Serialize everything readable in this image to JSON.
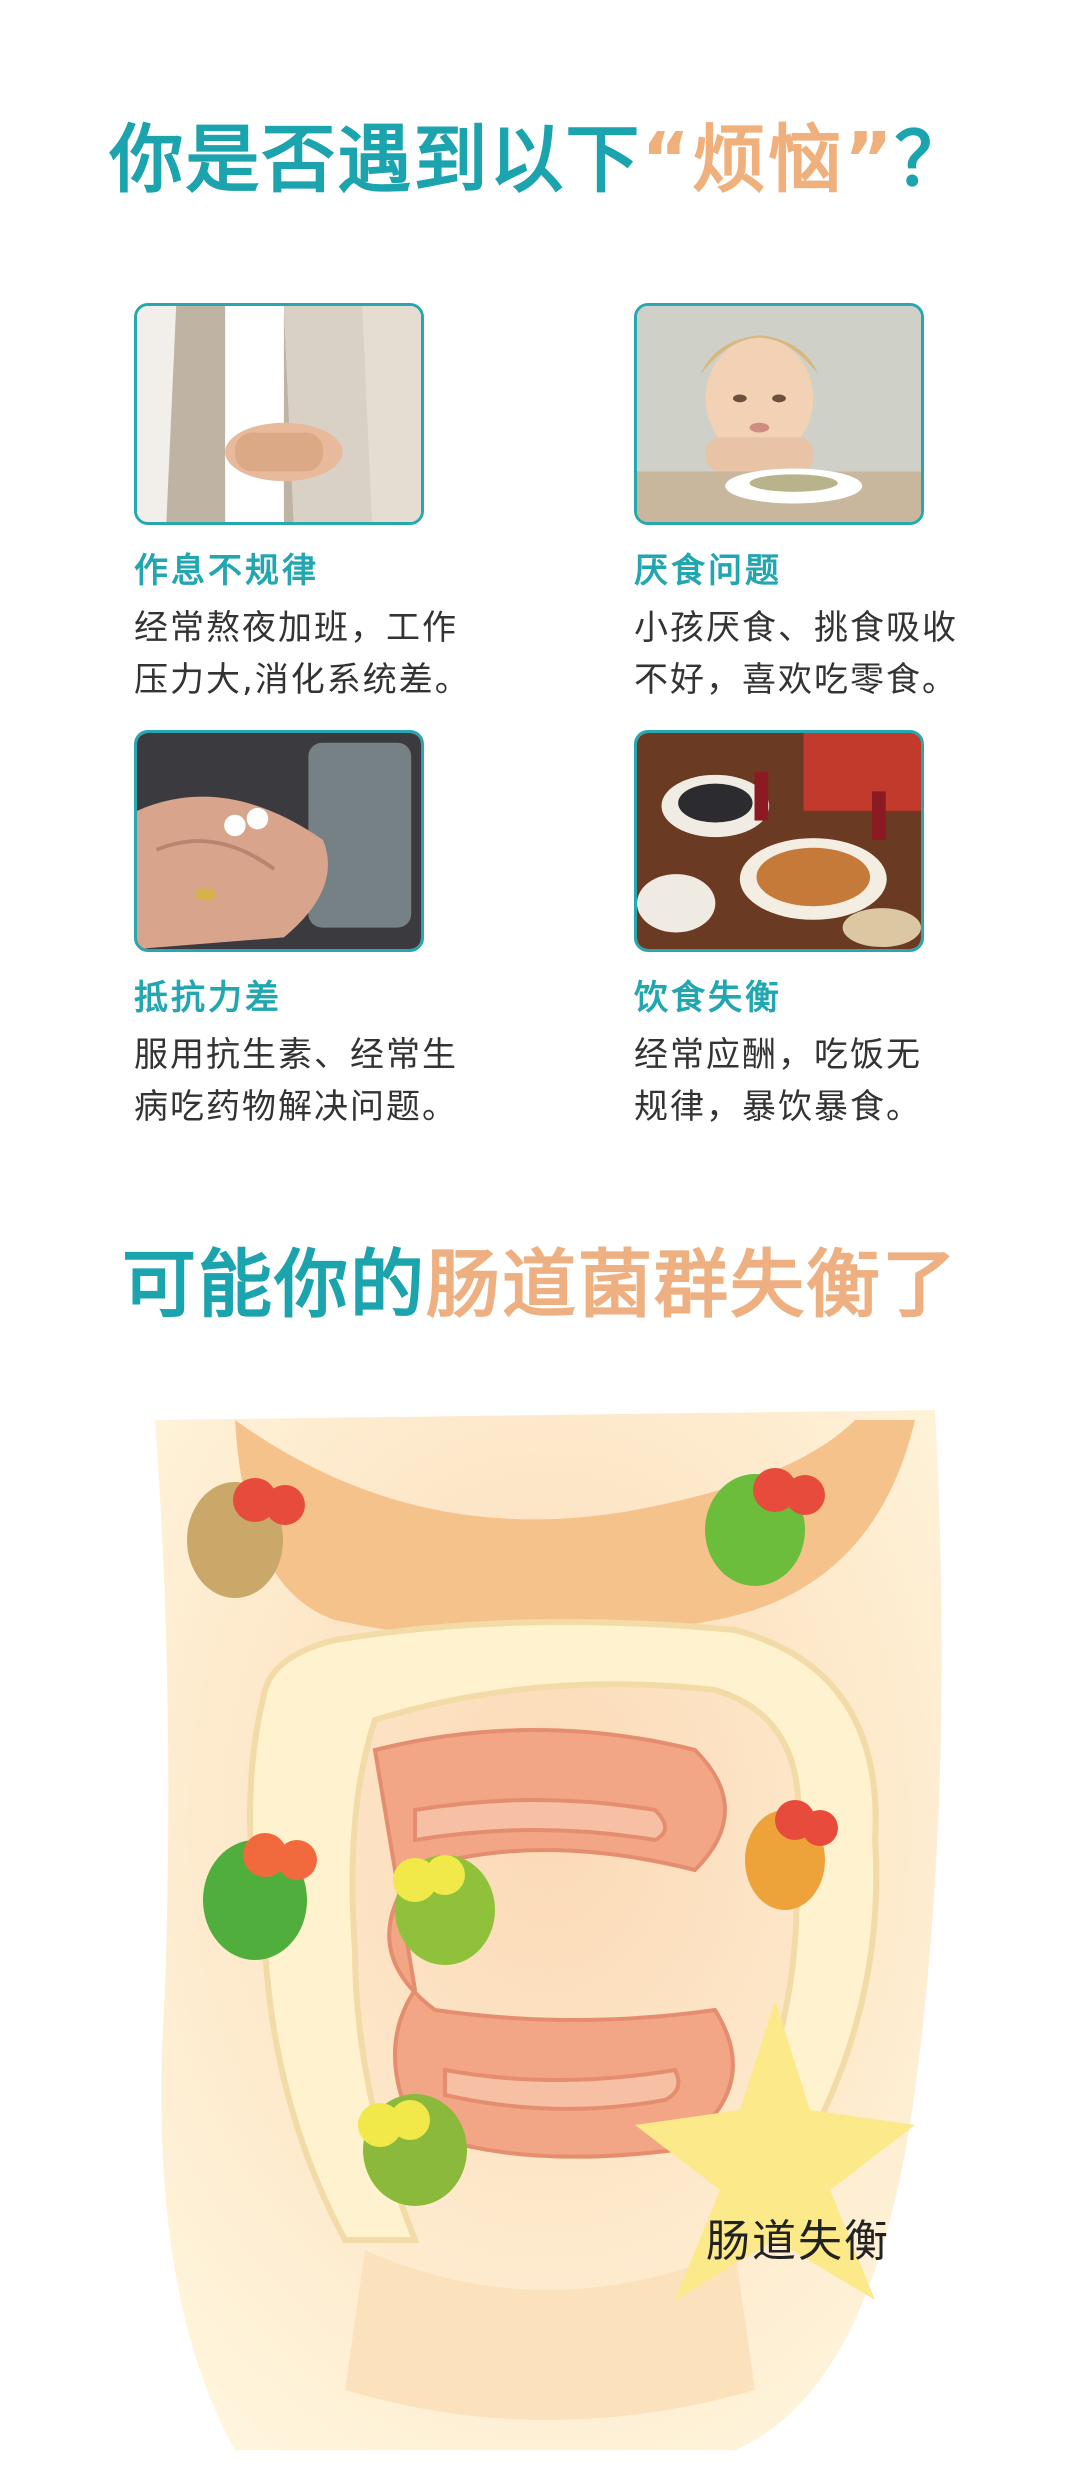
{
  "heading": {
    "part1": "你是否遇到以下",
    "accent": "“烦恼”",
    "part2": "？"
  },
  "cards": [
    {
      "title": "作息不规律",
      "text": "经常熬夜加班，工作\n压力大,消化系统差。",
      "icon": "stomach-ache-photo"
    },
    {
      "title": "厌食问题",
      "text": "小孩厌食、挑食吸收\n不好，喜欢吃零食。",
      "icon": "child-not-eating-photo"
    },
    {
      "title": "抵抗力差",
      "text": "服用抗生素、经常生\n病吃药物解决问题。",
      "icon": "pills-in-hand-photo"
    },
    {
      "title": "饮食失衡",
      "text": "经常应酬，吃饭无\n规律，暴饮暴食。",
      "icon": "feast-table-photo"
    }
  ],
  "subheading": {
    "part1": "可能你的",
    "accent": "肠道菌群失衡了"
  },
  "illustration": {
    "icon": "intestine-bacteria-illustration",
    "star_label": "肠道失衡"
  },
  "colors": {
    "teal": "#1ba4ad",
    "peach": "#f0b07b",
    "star": "#fbe98a"
  }
}
